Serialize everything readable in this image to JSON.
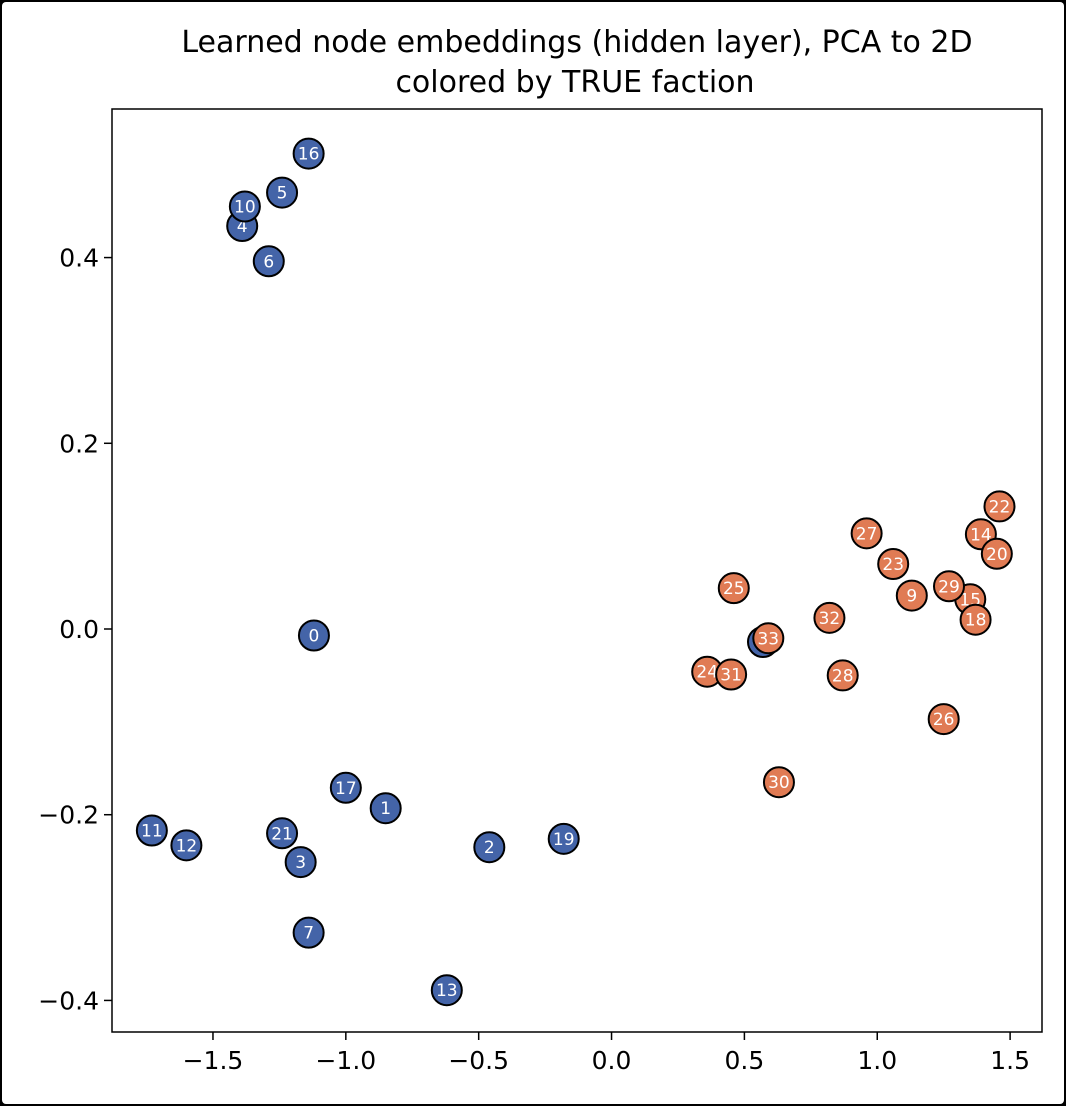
{
  "chart_data": {
    "type": "scatter",
    "title": "Learned node embeddings (hidden layer), PCA to 2D",
    "subtitle": "colored by TRUE faction",
    "xlabel": "",
    "ylabel": "",
    "xlim": [
      -1.88,
      1.62
    ],
    "ylim": [
      -0.434,
      0.56
    ],
    "xticks": [
      -1.5,
      -1.0,
      -0.5,
      0.0,
      0.5,
      1.0,
      1.5
    ],
    "yticks": [
      -0.4,
      -0.2,
      0.0,
      0.2,
      0.4
    ],
    "xtick_labels": [
      "−1.5",
      "−1.0",
      "−0.5",
      "0.0",
      "0.5",
      "1.0",
      "1.5"
    ],
    "ytick_labels": [
      "−0.4",
      "−0.2",
      "0.0",
      "0.2",
      "0.4"
    ],
    "grid": false,
    "legend": "none",
    "colors": {
      "faction_0": "#4464a8",
      "faction_1": "#e07b54",
      "edge": "#000000"
    },
    "points": [
      {
        "id": "0",
        "x": -1.12,
        "y": -0.007,
        "faction": 0
      },
      {
        "id": "1",
        "x": -0.85,
        "y": -0.193,
        "faction": 0
      },
      {
        "id": "2",
        "x": -0.46,
        "y": -0.235,
        "faction": 0
      },
      {
        "id": "3",
        "x": -1.17,
        "y": -0.251,
        "faction": 0
      },
      {
        "id": "4",
        "x": -1.39,
        "y": 0.434,
        "faction": 0
      },
      {
        "id": "5",
        "x": -1.24,
        "y": 0.47,
        "faction": 0
      },
      {
        "id": "6",
        "x": -1.29,
        "y": 0.396,
        "faction": 0
      },
      {
        "id": "7",
        "x": -1.14,
        "y": -0.327,
        "faction": 0
      },
      {
        "id": "8",
        "x": 0.57,
        "y": -0.014,
        "faction": 0
      },
      {
        "id": "9",
        "x": 1.13,
        "y": 0.036,
        "faction": 1
      },
      {
        "id": "10",
        "x": -1.38,
        "y": 0.455,
        "faction": 0
      },
      {
        "id": "11",
        "x": -1.73,
        "y": -0.217,
        "faction": 0
      },
      {
        "id": "12",
        "x": -1.6,
        "y": -0.233,
        "faction": 0
      },
      {
        "id": "13",
        "x": -0.62,
        "y": -0.389,
        "faction": 0
      },
      {
        "id": "14",
        "x": 1.39,
        "y": 0.102,
        "faction": 1
      },
      {
        "id": "15",
        "x": 1.35,
        "y": 0.032,
        "faction": 1
      },
      {
        "id": "16",
        "x": -1.14,
        "y": 0.512,
        "faction": 0
      },
      {
        "id": "17",
        "x": -1.0,
        "y": -0.171,
        "faction": 0
      },
      {
        "id": "18",
        "x": 1.37,
        "y": 0.01,
        "faction": 1
      },
      {
        "id": "19",
        "x": -0.18,
        "y": -0.226,
        "faction": 0
      },
      {
        "id": "20",
        "x": 1.45,
        "y": 0.081,
        "faction": 1
      },
      {
        "id": "21",
        "x": -1.24,
        "y": -0.22,
        "faction": 0
      },
      {
        "id": "22",
        "x": 1.46,
        "y": 0.132,
        "faction": 1
      },
      {
        "id": "23",
        "x": 1.06,
        "y": 0.07,
        "faction": 1
      },
      {
        "id": "24",
        "x": 0.36,
        "y": -0.046,
        "faction": 1
      },
      {
        "id": "25",
        "x": 0.46,
        "y": 0.044,
        "faction": 1
      },
      {
        "id": "26",
        "x": 1.25,
        "y": -0.097,
        "faction": 1
      },
      {
        "id": "27",
        "x": 0.96,
        "y": 0.103,
        "faction": 1
      },
      {
        "id": "28",
        "x": 0.87,
        "y": -0.05,
        "faction": 1
      },
      {
        "id": "29",
        "x": 1.27,
        "y": 0.046,
        "faction": 1
      },
      {
        "id": "30",
        "x": 0.63,
        "y": -0.165,
        "faction": 1
      },
      {
        "id": "31",
        "x": 0.45,
        "y": -0.049,
        "faction": 1
      },
      {
        "id": "32",
        "x": 0.82,
        "y": 0.012,
        "faction": 1
      },
      {
        "id": "33",
        "x": 0.59,
        "y": -0.01,
        "faction": 1
      }
    ]
  }
}
